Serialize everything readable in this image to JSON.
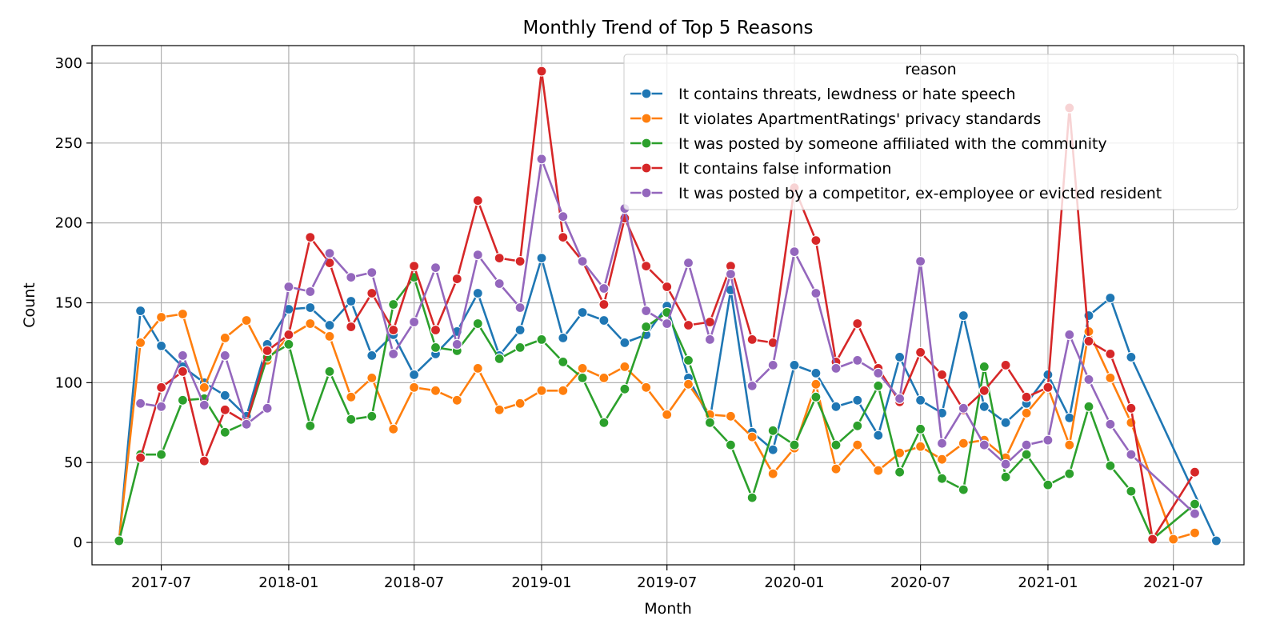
{
  "chart_data": {
    "type": "line",
    "title": "Monthly Trend of Top 5 Reasons",
    "xlabel": "Month",
    "ylabel": "Count",
    "ylim": [
      -14,
      311
    ],
    "xlim": [
      "2017-03-23",
      "2021-10-11"
    ],
    "yticks": [
      0,
      50,
      100,
      150,
      200,
      250,
      300
    ],
    "xticks": [
      "2017-07",
      "2018-01",
      "2018-07",
      "2019-01",
      "2019-07",
      "2020-01",
      "2020-07",
      "2021-01",
      "2021-07"
    ],
    "grid": true,
    "legend_title": "reason",
    "legend_position": "top-right",
    "series": [
      {
        "name": "It contains threats, lewdness or hate speech",
        "color": "#1f77b4",
        "points": [
          [
            "2017-05-01",
            1
          ],
          [
            "2017-06-01",
            145
          ],
          [
            "2017-07-01",
            123
          ],
          [
            "2017-08-01",
            110
          ],
          [
            "2017-09-01",
            100
          ],
          [
            "2017-10-01",
            92
          ],
          [
            "2017-11-01",
            79
          ],
          [
            "2017-12-01",
            124
          ],
          [
            "2018-01-01",
            146
          ],
          [
            "2018-02-01",
            147
          ],
          [
            "2018-03-01",
            136
          ],
          [
            "2018-04-01",
            151
          ],
          [
            "2018-05-01",
            117
          ],
          [
            "2018-06-01",
            130
          ],
          [
            "2018-07-01",
            105
          ],
          [
            "2018-08-01",
            118
          ],
          [
            "2018-09-01",
            132
          ],
          [
            "2018-10-01",
            156
          ],
          [
            "2018-11-01",
            117
          ],
          [
            "2018-12-01",
            133
          ],
          [
            "2019-01-01",
            178
          ],
          [
            "2019-02-01",
            128
          ],
          [
            "2019-03-01",
            144
          ],
          [
            "2019-04-01",
            139
          ],
          [
            "2019-05-01",
            125
          ],
          [
            "2019-06-01",
            130
          ],
          [
            "2019-07-01",
            148
          ],
          [
            "2019-08-01",
            103
          ],
          [
            "2019-09-01",
            77
          ],
          [
            "2019-10-01",
            158
          ],
          [
            "2019-11-01",
            69
          ],
          [
            "2019-12-01",
            58
          ],
          [
            "2020-01-01",
            111
          ],
          [
            "2020-02-01",
            106
          ],
          [
            "2020-03-01",
            85
          ],
          [
            "2020-04-01",
            89
          ],
          [
            "2020-05-01",
            67
          ],
          [
            "2020-06-01",
            116
          ],
          [
            "2020-07-01",
            89
          ],
          [
            "2020-08-01",
            81
          ],
          [
            "2020-09-01",
            142
          ],
          [
            "2020-10-01",
            85
          ],
          [
            "2020-11-01",
            75
          ],
          [
            "2020-12-01",
            87
          ],
          [
            "2021-01-01",
            105
          ],
          [
            "2021-02-01",
            78
          ],
          [
            "2021-03-01",
            142
          ],
          [
            "2021-04-01",
            153
          ],
          [
            "2021-05-01",
            116
          ],
          [
            "2021-09-01",
            1
          ]
        ]
      },
      {
        "name": "It violates ApartmentRatings' privacy standards",
        "color": "#ff7f0e",
        "points": [
          [
            "2017-05-01",
            1
          ],
          [
            "2017-06-01",
            125
          ],
          [
            "2017-07-01",
            141
          ],
          [
            "2017-08-01",
            143
          ],
          [
            "2017-09-01",
            97
          ],
          [
            "2017-10-01",
            128
          ],
          [
            "2017-11-01",
            139
          ],
          [
            "2017-12-01",
            114
          ],
          [
            "2018-01-01",
            129
          ],
          [
            "2018-02-01",
            137
          ],
          [
            "2018-03-01",
            129
          ],
          [
            "2018-04-01",
            91
          ],
          [
            "2018-05-01",
            103
          ],
          [
            "2018-06-01",
            71
          ],
          [
            "2018-07-01",
            97
          ],
          [
            "2018-08-01",
            95
          ],
          [
            "2018-09-01",
            89
          ],
          [
            "2018-10-01",
            109
          ],
          [
            "2018-11-01",
            83
          ],
          [
            "2018-12-01",
            87
          ],
          [
            "2019-01-01",
            95
          ],
          [
            "2019-02-01",
            95
          ],
          [
            "2019-03-01",
            109
          ],
          [
            "2019-04-01",
            103
          ],
          [
            "2019-05-01",
            110
          ],
          [
            "2019-06-01",
            97
          ],
          [
            "2019-07-01",
            80
          ],
          [
            "2019-08-01",
            99
          ],
          [
            "2019-09-01",
            80
          ],
          [
            "2019-10-01",
            79
          ],
          [
            "2019-11-01",
            66
          ],
          [
            "2019-12-01",
            43
          ],
          [
            "2020-01-01",
            59
          ],
          [
            "2020-02-01",
            99
          ],
          [
            "2020-03-01",
            46
          ],
          [
            "2020-04-01",
            61
          ],
          [
            "2020-05-01",
            45
          ],
          [
            "2020-06-01",
            56
          ],
          [
            "2020-07-01",
            60
          ],
          [
            "2020-08-01",
            52
          ],
          [
            "2020-09-01",
            62
          ],
          [
            "2020-10-01",
            64
          ],
          [
            "2020-11-01",
            53
          ],
          [
            "2020-12-01",
            81
          ],
          [
            "2021-01-01",
            97
          ],
          [
            "2021-02-01",
            61
          ],
          [
            "2021-03-01",
            132
          ],
          [
            "2021-04-01",
            103
          ],
          [
            "2021-05-01",
            75
          ],
          [
            "2021-07-01",
            2
          ],
          [
            "2021-08-01",
            6
          ]
        ]
      },
      {
        "name": "It was posted by someone affiliated with the community",
        "color": "#2ca02c",
        "points": [
          [
            "2017-05-01",
            1
          ],
          [
            "2017-06-01",
            55
          ],
          [
            "2017-07-01",
            55
          ],
          [
            "2017-08-01",
            89
          ],
          [
            "2017-09-01",
            90
          ],
          [
            "2017-10-01",
            69
          ],
          [
            "2017-11-01",
            75
          ],
          [
            "2017-12-01",
            116
          ],
          [
            "2018-01-01",
            124
          ],
          [
            "2018-02-01",
            73
          ],
          [
            "2018-03-01",
            107
          ],
          [
            "2018-04-01",
            77
          ],
          [
            "2018-05-01",
            79
          ],
          [
            "2018-06-01",
            149
          ],
          [
            "2018-07-01",
            166
          ],
          [
            "2018-08-01",
            122
          ],
          [
            "2018-09-01",
            120
          ],
          [
            "2018-10-01",
            137
          ],
          [
            "2018-11-01",
            115
          ],
          [
            "2018-12-01",
            122
          ],
          [
            "2019-01-01",
            127
          ],
          [
            "2019-02-01",
            113
          ],
          [
            "2019-03-01",
            103
          ],
          [
            "2019-04-01",
            75
          ],
          [
            "2019-05-01",
            96
          ],
          [
            "2019-06-01",
            135
          ],
          [
            "2019-07-01",
            144
          ],
          [
            "2019-08-01",
            114
          ],
          [
            "2019-09-01",
            75
          ],
          [
            "2019-10-01",
            61
          ],
          [
            "2019-11-01",
            28
          ],
          [
            "2019-12-01",
            70
          ],
          [
            "2020-01-01",
            61
          ],
          [
            "2020-02-01",
            91
          ],
          [
            "2020-03-01",
            61
          ],
          [
            "2020-04-01",
            73
          ],
          [
            "2020-05-01",
            98
          ],
          [
            "2020-06-01",
            44
          ],
          [
            "2020-07-01",
            71
          ],
          [
            "2020-08-01",
            40
          ],
          [
            "2020-09-01",
            33
          ],
          [
            "2020-10-01",
            110
          ],
          [
            "2020-11-01",
            41
          ],
          [
            "2020-12-01",
            55
          ],
          [
            "2021-01-01",
            36
          ],
          [
            "2021-02-01",
            43
          ],
          [
            "2021-03-01",
            85
          ],
          [
            "2021-04-01",
            48
          ],
          [
            "2021-05-01",
            32
          ],
          [
            "2021-06-01",
            2
          ],
          [
            "2021-08-01",
            24
          ]
        ]
      },
      {
        "name": "It contains false information",
        "color": "#d62728",
        "points": [
          [
            "2017-06-01",
            53
          ],
          [
            "2017-07-01",
            97
          ],
          [
            "2017-08-01",
            107
          ],
          [
            "2017-09-01",
            51
          ],
          [
            "2017-10-01",
            83
          ],
          [
            "2017-11-01",
            75
          ],
          [
            "2017-12-01",
            120
          ],
          [
            "2018-01-01",
            130
          ],
          [
            "2018-02-01",
            191
          ],
          [
            "2018-03-01",
            175
          ],
          [
            "2018-04-01",
            135
          ],
          [
            "2018-05-01",
            156
          ],
          [
            "2018-06-01",
            133
          ],
          [
            "2018-07-01",
            173
          ],
          [
            "2018-08-01",
            133
          ],
          [
            "2018-09-01",
            165
          ],
          [
            "2018-10-01",
            214
          ],
          [
            "2018-11-01",
            178
          ],
          [
            "2018-12-01",
            176
          ],
          [
            "2019-01-01",
            295
          ],
          [
            "2019-02-01",
            191
          ],
          [
            "2019-03-01",
            176
          ],
          [
            "2019-04-01",
            149
          ],
          [
            "2019-05-01",
            203
          ],
          [
            "2019-06-01",
            173
          ],
          [
            "2019-07-01",
            160
          ],
          [
            "2019-08-01",
            136
          ],
          [
            "2019-09-01",
            138
          ],
          [
            "2019-10-01",
            173
          ],
          [
            "2019-11-01",
            127
          ],
          [
            "2019-12-01",
            125
          ],
          [
            "2020-01-01",
            222
          ],
          [
            "2020-02-01",
            189
          ],
          [
            "2020-03-01",
            113
          ],
          [
            "2020-04-01",
            137
          ],
          [
            "2020-05-01",
            109
          ],
          [
            "2020-06-01",
            88
          ],
          [
            "2020-07-01",
            119
          ],
          [
            "2020-08-01",
            105
          ],
          [
            "2020-09-01",
            83
          ],
          [
            "2020-10-01",
            95
          ],
          [
            "2020-11-01",
            111
          ],
          [
            "2020-12-01",
            91
          ],
          [
            "2021-01-01",
            97
          ],
          [
            "2021-02-01",
            272
          ],
          [
            "2021-03-01",
            126
          ],
          [
            "2021-04-01",
            118
          ],
          [
            "2021-05-01",
            84
          ],
          [
            "2021-06-01",
            2
          ],
          [
            "2021-08-01",
            44
          ]
        ]
      },
      {
        "name": "It was posted by a competitor, ex-employee or evicted resident",
        "color": "#9467bd",
        "points": [
          [
            "2017-06-01",
            87
          ],
          [
            "2017-07-01",
            85
          ],
          [
            "2017-08-01",
            117
          ],
          [
            "2017-09-01",
            86
          ],
          [
            "2017-10-01",
            117
          ],
          [
            "2017-11-01",
            74
          ],
          [
            "2017-12-01",
            84
          ],
          [
            "2018-01-01",
            160
          ],
          [
            "2018-02-01",
            157
          ],
          [
            "2018-03-01",
            181
          ],
          [
            "2018-04-01",
            166
          ],
          [
            "2018-05-01",
            169
          ],
          [
            "2018-06-01",
            118
          ],
          [
            "2018-07-01",
            138
          ],
          [
            "2018-08-01",
            172
          ],
          [
            "2018-09-01",
            124
          ],
          [
            "2018-10-01",
            180
          ],
          [
            "2018-11-01",
            162
          ],
          [
            "2018-12-01",
            147
          ],
          [
            "2019-01-01",
            240
          ],
          [
            "2019-02-01",
            204
          ],
          [
            "2019-03-01",
            176
          ],
          [
            "2019-04-01",
            159
          ],
          [
            "2019-05-01",
            209
          ],
          [
            "2019-06-01",
            145
          ],
          [
            "2019-07-01",
            137
          ],
          [
            "2019-08-01",
            175
          ],
          [
            "2019-09-01",
            127
          ],
          [
            "2019-10-01",
            168
          ],
          [
            "2019-11-01",
            98
          ],
          [
            "2019-12-01",
            111
          ],
          [
            "2020-01-01",
            182
          ],
          [
            "2020-02-01",
            156
          ],
          [
            "2020-03-01",
            109
          ],
          [
            "2020-04-01",
            114
          ],
          [
            "2020-05-01",
            106
          ],
          [
            "2020-06-01",
            90
          ],
          [
            "2020-07-01",
            176
          ],
          [
            "2020-08-01",
            62
          ],
          [
            "2020-09-01",
            84
          ],
          [
            "2020-10-01",
            61
          ],
          [
            "2020-11-01",
            49
          ],
          [
            "2020-12-01",
            61
          ],
          [
            "2021-01-01",
            64
          ],
          [
            "2021-02-01",
            130
          ],
          [
            "2021-03-01",
            102
          ],
          [
            "2021-04-01",
            74
          ],
          [
            "2021-05-01",
            55
          ],
          [
            "2021-08-01",
            18
          ]
        ]
      }
    ]
  }
}
